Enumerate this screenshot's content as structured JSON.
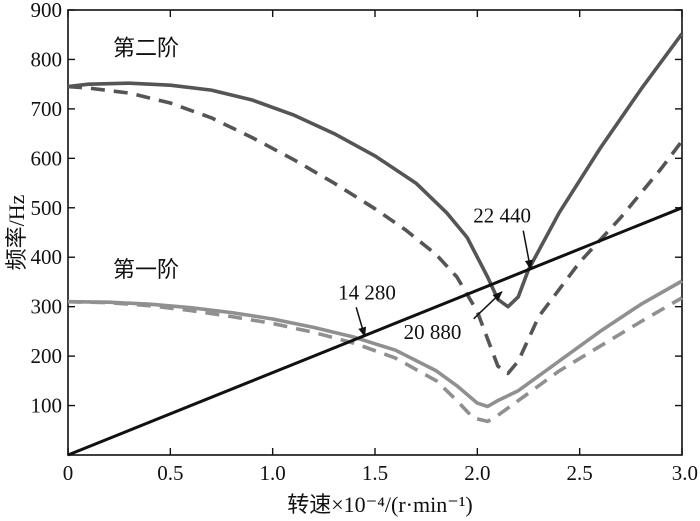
{
  "chart_data": {
    "type": "line",
    "title": "",
    "xlabel": "转速×10⁻⁴/(r·min⁻¹)",
    "ylabel": "频率/Hz",
    "xlim": [
      0,
      3.0
    ],
    "ylim": [
      0,
      900
    ],
    "x_ticks": [
      "0",
      "0.5",
      "1.0",
      "1.5",
      "2.0",
      "2.5",
      "3.0"
    ],
    "y_ticks": [
      "100",
      "200",
      "300",
      "400",
      "500",
      "600",
      "700",
      "800",
      "900"
    ],
    "grid": false,
    "legend": "none",
    "series": [
      {
        "name": "第二阶",
        "style": "solid",
        "color": "#555555",
        "x": [
          0,
          0.1,
          0.3,
          0.5,
          0.7,
          0.9,
          1.1,
          1.3,
          1.5,
          1.7,
          1.85,
          1.95,
          2.05,
          2.1,
          2.15,
          2.2,
          2.25,
          2.4,
          2.6,
          2.8,
          3.0
        ],
        "y": [
          745,
          750,
          752,
          748,
          738,
          718,
          688,
          650,
          605,
          550,
          490,
          440,
          360,
          315,
          300,
          320,
          375,
          490,
          620,
          740,
          852
        ]
      },
      {
        "style": "dashed",
        "color": "#555555",
        "x": [
          0,
          0.1,
          0.3,
          0.5,
          0.7,
          0.9,
          1.1,
          1.3,
          1.5,
          1.65,
          1.8,
          1.9,
          2.0,
          2.1,
          2.15,
          2.2,
          2.3,
          2.5,
          2.7,
          2.9,
          3.0
        ],
        "y": [
          745,
          742,
          732,
          712,
          682,
          642,
          598,
          550,
          498,
          455,
          405,
          360,
          290,
          180,
          165,
          190,
          280,
          390,
          480,
          580,
          635
        ]
      },
      {
        "name": "第一阶",
        "style": "solid",
        "color": "#909090",
        "x": [
          0,
          0.2,
          0.4,
          0.6,
          0.8,
          1.0,
          1.2,
          1.4,
          1.6,
          1.8,
          1.9,
          2.0,
          2.05,
          2.1,
          2.2,
          2.4,
          2.6,
          2.8,
          3.0
        ],
        "y": [
          310,
          309,
          305,
          298,
          288,
          275,
          258,
          238,
          212,
          170,
          140,
          105,
          98,
          110,
          130,
          190,
          250,
          305,
          352
        ]
      },
      {
        "style": "dashed",
        "color": "#909090",
        "x": [
          0,
          0.2,
          0.4,
          0.6,
          0.8,
          1.0,
          1.2,
          1.4,
          1.6,
          1.8,
          1.9,
          1.98,
          2.05,
          2.1,
          2.2,
          2.4,
          2.6,
          2.8,
          3.0
        ],
        "y": [
          310,
          308,
          302,
          292,
          280,
          266,
          248,
          226,
          196,
          150,
          110,
          75,
          68,
          80,
          110,
          170,
          220,
          270,
          318
        ]
      },
      {
        "style": "solid",
        "color": "#111111",
        "x": [
          0,
          3.0
        ],
        "y": [
          0,
          500
        ]
      }
    ],
    "annotations": [
      {
        "text": "第二阶",
        "x": 0.22,
        "y": 808,
        "kind": "series-label"
      },
      {
        "text": "第一阶",
        "x": 0.22,
        "y": 360,
        "kind": "series-label"
      },
      {
        "text": "22 440",
        "x": 1.98,
        "y": 470,
        "arrow_to": [
          2.26,
          376
        ]
      },
      {
        "text": "14 280",
        "x": 1.32,
        "y": 315,
        "arrow_to": [
          1.45,
          240
        ]
      },
      {
        "text": "20 880",
        "x": 1.64,
        "y": 235,
        "arrow_to": [
          2.12,
          330
        ]
      }
    ]
  }
}
